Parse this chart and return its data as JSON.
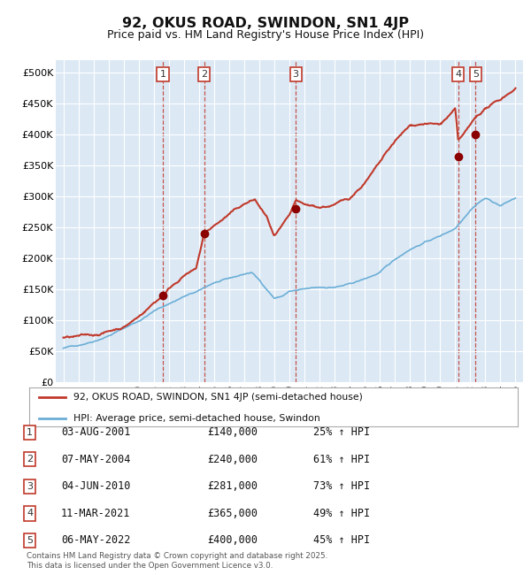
{
  "title": "92, OKUS ROAD, SWINDON, SN1 4JP",
  "subtitle": "Price paid vs. HM Land Registry's House Price Index (HPI)",
  "plot_bg_color": "#dce9f5",
  "fig_bg_color": "#ffffff",
  "red_line_label": "92, OKUS ROAD, SWINDON, SN1 4JP (semi-detached house)",
  "blue_line_label": "HPI: Average price, semi-detached house, Swindon",
  "footer": "Contains HM Land Registry data © Crown copyright and database right 2025.\nThis data is licensed under the Open Government Licence v3.0.",
  "transactions": [
    {
      "num": 1,
      "date": "03-AUG-2001",
      "price": 140000,
      "pct": "25% ↑ HPI",
      "year": 2001.6
    },
    {
      "num": 2,
      "date": "07-MAY-2004",
      "price": 240000,
      "pct": "61% ↑ HPI",
      "year": 2004.35
    },
    {
      "num": 3,
      "date": "04-JUN-2010",
      "price": 281000,
      "pct": "73% ↑ HPI",
      "year": 2010.42
    },
    {
      "num": 4,
      "date": "11-MAR-2021",
      "price": 365000,
      "pct": "49% ↑ HPI",
      "year": 2021.2
    },
    {
      "num": 5,
      "date": "06-MAY-2022",
      "price": 400000,
      "pct": "45% ↑ HPI",
      "year": 2022.35
    }
  ],
  "hpi_x": [
    1995,
    1996,
    1997,
    1998,
    1999,
    2000,
    2001,
    2002,
    2003,
    2004,
    2005,
    2006,
    2007,
    2007.5,
    2008,
    2009,
    2009.5,
    2010,
    2011,
    2012,
    2013,
    2014,
    2015,
    2016,
    2017,
    2018,
    2019,
    2020,
    2021,
    2022,
    2022.5,
    2023,
    2024,
    2025
  ],
  "hpi_y": [
    55000,
    60000,
    68000,
    78000,
    90000,
    102000,
    118000,
    130000,
    142000,
    150000,
    163000,
    168000,
    175000,
    178000,
    165000,
    137000,
    140000,
    148000,
    150000,
    152000,
    153000,
    157000,
    165000,
    175000,
    195000,
    213000,
    225000,
    235000,
    248000,
    280000,
    292000,
    300000,
    288000,
    300000
  ],
  "red_x": [
    1995,
    1996,
    1997,
    1998,
    1999,
    2000,
    2001,
    2001.6,
    2002,
    2003,
    2003.8,
    2004.35,
    2005,
    2006,
    2007,
    2007.7,
    2008.5,
    2009,
    2010,
    2010.42,
    2011,
    2012,
    2013,
    2014,
    2015,
    2016,
    2017,
    2018,
    2019,
    2020,
    2021.0,
    2021.2,
    2022,
    2022.35,
    2023,
    2024,
    2025
  ],
  "red_y": [
    72000,
    72500,
    73000,
    80000,
    88000,
    105000,
    128000,
    140000,
    152000,
    175000,
    183000,
    240000,
    252000,
    270000,
    285000,
    292000,
    262000,
    230000,
    258000,
    281000,
    272000,
    268000,
    272000,
    282000,
    308000,
    338000,
    370000,
    393000,
    398000,
    395000,
    418000,
    365000,
    388000,
    400000,
    415000,
    428000,
    448000
  ],
  "ylim": [
    0,
    520000
  ],
  "xlim_start": 1994.5,
  "xlim_end": 2025.5,
  "yticks": [
    0,
    50000,
    100000,
    150000,
    200000,
    250000,
    300000,
    350000,
    400000,
    450000,
    500000
  ],
  "ytick_labels": [
    "£0",
    "£50K",
    "£100K",
    "£150K",
    "£200K",
    "£250K",
    "£300K",
    "£350K",
    "£400K",
    "£450K",
    "£500K"
  ]
}
